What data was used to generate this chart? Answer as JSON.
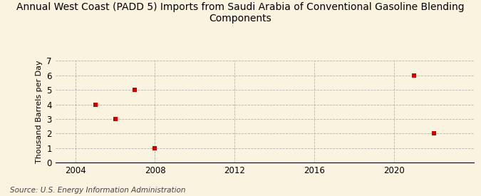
{
  "title": "Annual West Coast (PADD 5) Imports from Saudi Arabia of Conventional Gasoline Blending\nComponents",
  "ylabel": "Thousand Barrels per Day",
  "source": "Source: U.S. Energy Information Administration",
  "x_data": [
    2005,
    2006,
    2007,
    2008,
    2021,
    2022
  ],
  "y_data": [
    4,
    3,
    5,
    1,
    6,
    2
  ],
  "marker_color": "#cc0000",
  "marker": "s",
  "marker_size": 4,
  "xlim": [
    2003,
    2024
  ],
  "ylim": [
    0,
    7
  ],
  "xticks": [
    2004,
    2008,
    2012,
    2016,
    2020
  ],
  "yticks": [
    0,
    1,
    2,
    3,
    4,
    5,
    6,
    7
  ],
  "background_color": "#faf3e0",
  "grid_color": "#999999",
  "title_fontsize": 10,
  "label_fontsize": 8,
  "tick_fontsize": 8.5,
  "source_fontsize": 7.5
}
